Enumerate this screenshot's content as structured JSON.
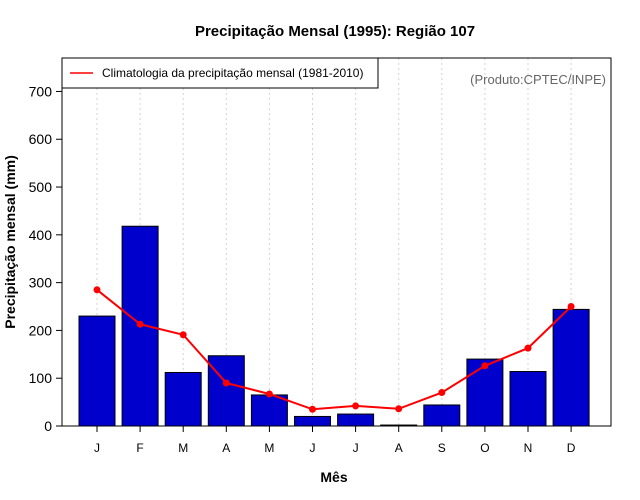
{
  "chart_data": {
    "type": "bar",
    "title": "Precipitação Mensal (1995): Região 107",
    "xlabel": "Mês",
    "ylabel": "Precipitação mensal (mm)",
    "ylim": [
      0,
      770
    ],
    "yticks": [
      0,
      100,
      200,
      300,
      400,
      500,
      600,
      700
    ],
    "categories": [
      "J",
      "F",
      "M",
      "A",
      "M",
      "J",
      "J",
      "A",
      "S",
      "O",
      "N",
      "D"
    ],
    "series": [
      {
        "name": "Precipitação mensal (1995)",
        "type": "bar",
        "color": "#0000cc",
        "values": [
          230,
          418,
          112,
          147,
          65,
          20,
          25,
          2,
          44,
          140,
          114,
          244
        ]
      },
      {
        "name": "Climatologia da precipitação mensal (1981-2010)",
        "type": "line",
        "color": "#ff0000",
        "values": [
          285,
          213,
          191,
          90,
          67,
          35,
          42,
          36,
          70,
          126,
          163,
          250
        ]
      }
    ],
    "legend": {
      "position": "top-left",
      "entries": [
        "Climatologia da precipitação mensal (1981-2010)"
      ]
    },
    "annotation": "(Produto:CPTEC/INPE)",
    "grid": "vertical-dotted"
  }
}
